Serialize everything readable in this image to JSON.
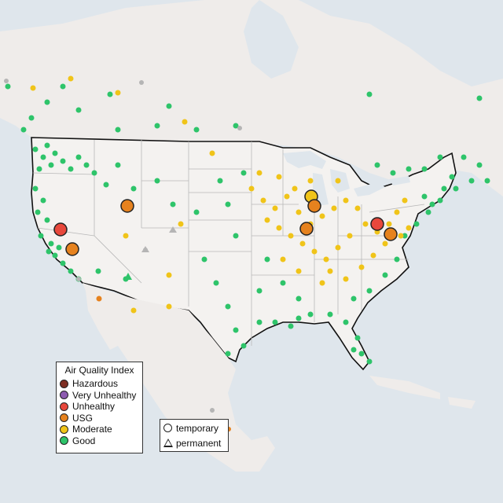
{
  "legend": {
    "title": "Air Quality Index",
    "categories": [
      {
        "label": "Hazardous",
        "color": "#7e2e23"
      },
      {
        "label": "Very Unhealthy",
        "color": "#8d5bb0"
      },
      {
        "label": "Unhealthy",
        "color": "#e8483c"
      },
      {
        "label": "USG",
        "color": "#e6821e"
      },
      {
        "label": "Moderate",
        "color": "#f0c419"
      },
      {
        "label": "Good",
        "color": "#2ec46a"
      }
    ]
  },
  "monitor_type_legend": {
    "items": [
      {
        "label": "temporary",
        "shape": "circle-outline-icon"
      },
      {
        "label": "permanent",
        "shape": "triangle-outline-icon"
      }
    ]
  },
  "colors": {
    "ocean": "#dfe6ec",
    "land": "#efecea",
    "us_land": "#f4f2f0",
    "border": "#111111",
    "state_line": "#b8b8b8",
    "inactive_monitor": "#b5b5b5"
  }
}
